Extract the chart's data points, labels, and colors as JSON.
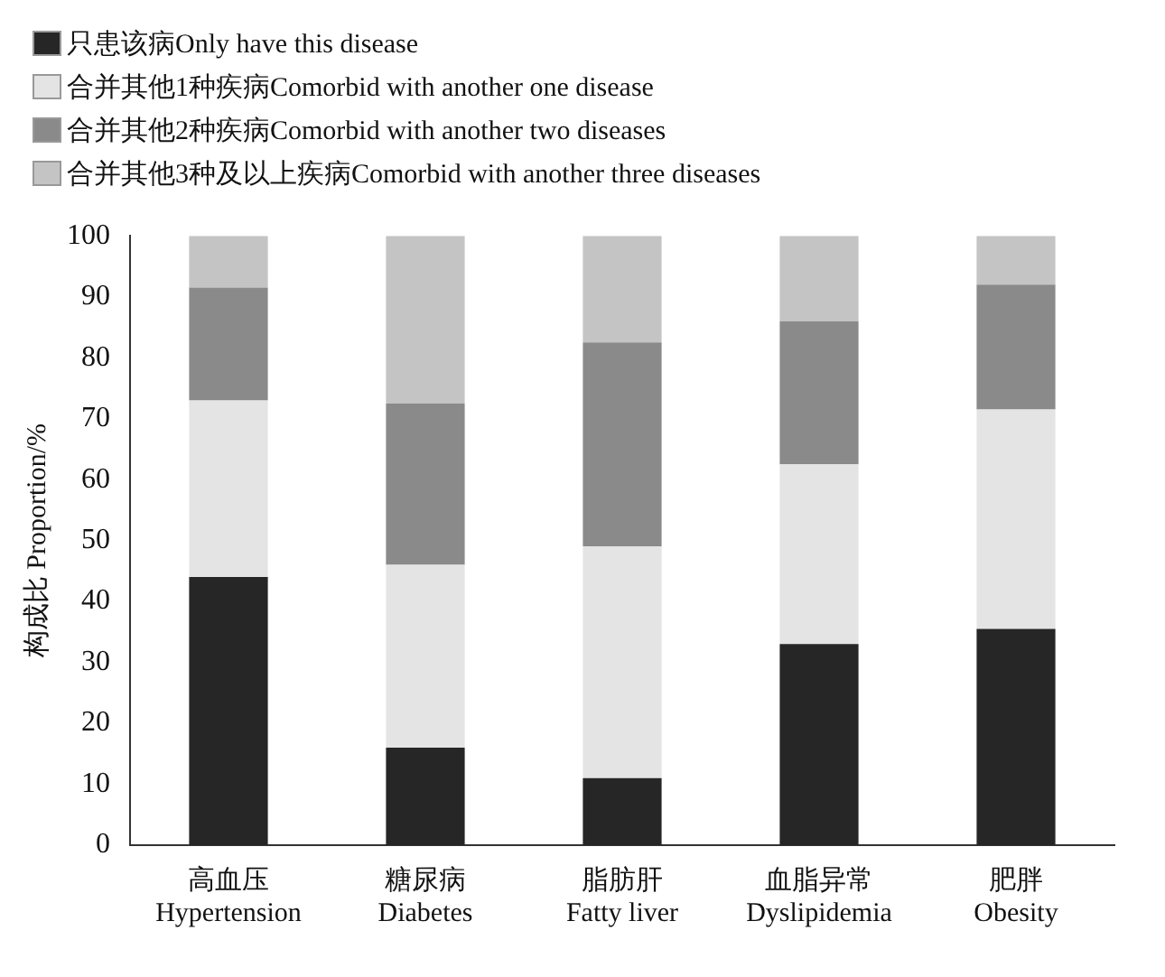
{
  "chart_data": {
    "type": "bar",
    "stacked": true,
    "ylabel": "构成比 Proportion/%",
    "categories": [
      "高血压\nHypertension",
      "糖尿病\nDiabetes",
      "脂肪肝\nFatty liver",
      "血脂异常\nDyslipidemia",
      "肥胖\nObesity"
    ],
    "series": [
      {
        "name": "只患该病Only have this disease",
        "color": "#262626",
        "values": [
          44,
          16,
          11,
          33,
          35.5
        ]
      },
      {
        "name": "合并其他1种疾病Comorbid with another one disease",
        "color": "#e4e4e4",
        "values": [
          29,
          30,
          38,
          29.5,
          36
        ]
      },
      {
        "name": "合并其他2种疾病Comorbid with another two diseases",
        "color": "#8a8a8a",
        "values": [
          18.5,
          26.5,
          33.5,
          23.5,
          20.5
        ]
      },
      {
        "name": "合并其他3种及以上疾病Comorbid with another three diseases",
        "color": "#c4c4c4",
        "values": [
          8.5,
          27.5,
          17.5,
          14,
          8
        ]
      }
    ],
    "ylim": [
      0,
      100
    ],
    "yticks": [
      0,
      10,
      20,
      30,
      40,
      50,
      60,
      70,
      80,
      90,
      100
    ],
    "legend": "top left",
    "grid": false
  }
}
